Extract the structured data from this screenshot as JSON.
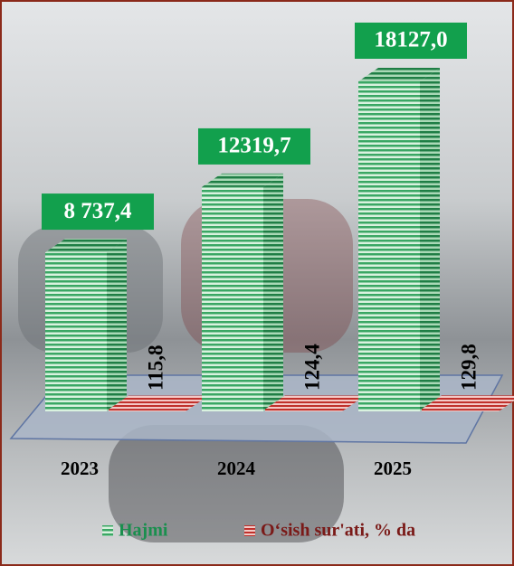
{
  "chart_data": {
    "type": "bar3d",
    "categories": [
      "2023",
      "2024",
      "2025"
    ],
    "series": [
      {
        "name": "Hajmi",
        "color": "#2e9e5b",
        "values": [
          8737.4,
          12319.7,
          18127.0
        ],
        "value_labels": [
          "8 737,4",
          "12319,7",
          "18127,0"
        ]
      },
      {
        "name": "O‘sish sur'ati, % da",
        "color": "#c0302b",
        "values": [
          115.8,
          124.4,
          129.8
        ],
        "value_labels": [
          "115,8",
          "124,4",
          "129,8"
        ]
      }
    ]
  }
}
